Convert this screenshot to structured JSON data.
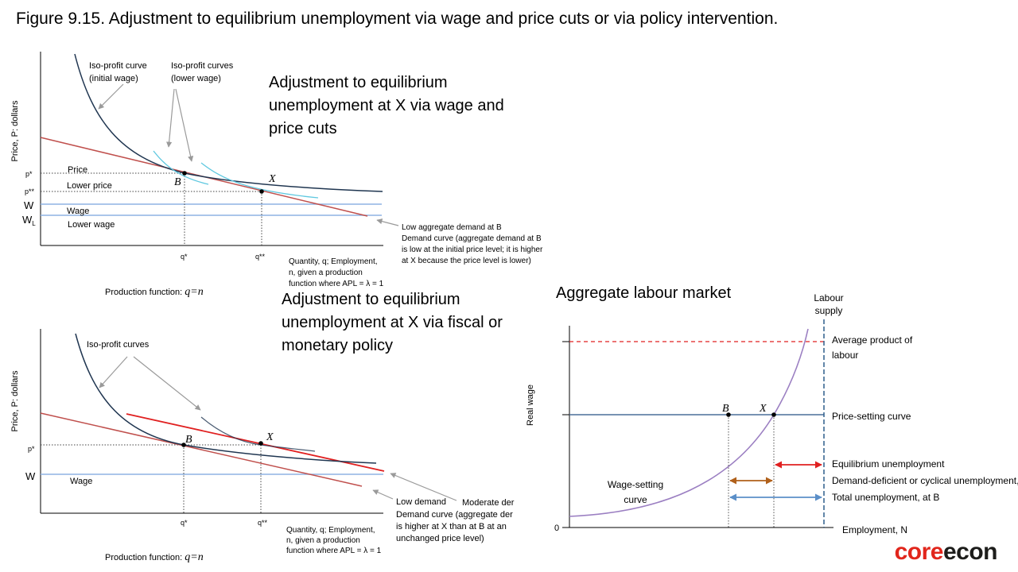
{
  "figure_title": "Figure 9.15.  Adjustment to equilibrium unemployment via wage and price cuts or via policy intervention.",
  "panel_top": {
    "heading": "Adjustment to equilibrium unemployment at X via wage and price cuts",
    "y_axis_label": "Price, P: dollars",
    "labels": {
      "iso_initial": [
        "Iso-profit curve",
        "(initial wage)"
      ],
      "iso_lower": [
        "Iso-profit curves",
        "(lower wage)"
      ],
      "price": "Price",
      "lower_price": "Lower price",
      "wage": "Wage",
      "lower_wage": "Lower wage",
      "p_star": "p*",
      "p_star2": "p**",
      "w": "W",
      "wl": "W",
      "wl_sub": "L",
      "q_star": "q*",
      "q_star2": "q**",
      "point_b": "B",
      "point_x": "X",
      "demand_note": [
        "Low aggregate demand at B",
        "Demand curve (aggregate demand at B",
        "is low at the initial price level; it is higher",
        "at X because the price level is lower)"
      ],
      "x_axis_label": [
        "Quantity, q; Employment,",
        "n, given a production",
        "function where APL = λ = 1"
      ],
      "production_fn": "Production function:",
      "production_eq": "q=n"
    }
  },
  "panel_bottom": {
    "heading": "Adjustment to equilibrium unemployment at X via fiscal or monetary policy",
    "y_axis_label": "Price, P: dollars",
    "labels": {
      "iso": "Iso-profit curves",
      "wage": "Wage",
      "p_star": "p*",
      "w": "W",
      "q_star": "q*",
      "q_star2": "q**",
      "point_b": "B",
      "point_x": "X",
      "low_demand": "Low demand",
      "moderate_demand": "Moderate der",
      "demand_note": [
        "Demand curve (aggregate der",
        "is higher at X than at B at an",
        "unchanged price level)"
      ],
      "x_axis_label": [
        "Quantity, q; Employment,",
        "n, given a production",
        "function where APL = λ = 1"
      ],
      "production_fn": "Production function:",
      "production_eq": "q=n"
    }
  },
  "panel_right": {
    "heading": "Aggregate labour market",
    "y_axis_label": "Real wage",
    "labels": {
      "labour_supply": [
        "Labour",
        "supply"
      ],
      "apl": [
        "Average product of",
        "labour"
      ],
      "price_setting": "Price-setting curve",
      "equilibrium_unemployment": "Equilibrium unemployment",
      "demand_deficient": "Demand-deficient or cyclical unemployment,",
      "total_unemployment": "Total unemployment, at B",
      "wage_setting": [
        "Wage-setting",
        "curve"
      ],
      "zero": "0",
      "x_axis_label": "Employment, N",
      "point_b": "B",
      "point_x": "X"
    }
  },
  "logo": {
    "part1": "core",
    "part2": "econ"
  },
  "colors": {
    "iso_dark": "#1f3550",
    "iso_light": "#5fc8e0",
    "demand_red": "#c0504d",
    "policy_red": "#e02020",
    "wage_blue": "#8fb4e3",
    "price_setting": "#4a6f99",
    "wage_setting": "#9b7fc2",
    "labour_supply": "#2e5e8c",
    "brown_arrow": "#b0601a",
    "total_arrow": "#5b8fc8"
  }
}
